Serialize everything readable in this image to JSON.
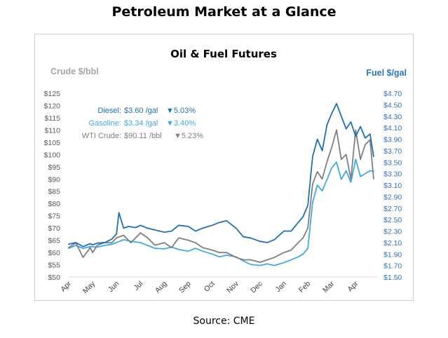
{
  "page": {
    "title": "Petroleum Market at a Glance",
    "source": "Source: CME"
  },
  "colors": {
    "diesel": "#1f6fb4",
    "gasoline": "#3fa9e0",
    "crude": "#7f7f7f",
    "right_axis": "#2e75b6",
    "left_axis": "#a6a6a6"
  },
  "chart_data": {
    "type": "line",
    "title": "Oil & Fuel Futures",
    "ylabel_left": "Crude $/bbl",
    "ylabel_right": "Fuel $/gal",
    "ylim_left": [
      50,
      125
    ],
    "ylim_right": [
      1.5,
      4.7
    ],
    "y_ticks_left": [
      "$125",
      "$120",
      "$115",
      "$110",
      "$105",
      "$100",
      "$95",
      "$90",
      "$85",
      "$80",
      "$75",
      "$70",
      "$65",
      "$60",
      "$55",
      "$50"
    ],
    "y_ticks_right": [
      "$4.70",
      "$4.50",
      "$4.30",
      "$4.10",
      "$3.90",
      "$3.70",
      "$3.50",
      "$3.30",
      "$3.10",
      "$2.90",
      "$2.70",
      "$2.50",
      "$2.30",
      "$2.10",
      "$1.90",
      "$1.70",
      "$1.50"
    ],
    "x_ticks": [
      "Apr",
      "May",
      "Jun",
      "Jul",
      "Aug",
      "Sep",
      "Oct",
      "Nov",
      "Dec",
      "Jan",
      "Feb",
      "Mar",
      "Apr"
    ],
    "grid": false,
    "legend_labels": [
      {
        "name": "Diesel:",
        "value": "$3.60 /gal",
        "change": "▼5.03%"
      },
      {
        "name": "Gasoline:",
        "value": "$3.34 /gal",
        "change": "▼3.40%"
      },
      {
        "name": "WTI Crude:",
        "value": "$90.11 /bbl",
        "change": "▼5.23%"
      }
    ],
    "series": [
      {
        "name": "Diesel",
        "axis": "right",
        "x": [
          0.0,
          0.3,
          0.6,
          0.9,
          1.0,
          1.2,
          1.5,
          1.8,
          2.0,
          2.1,
          2.3,
          2.5,
          2.8,
          3.0,
          3.3,
          3.6,
          4.0,
          4.3,
          4.6,
          5.0,
          5.3,
          5.6,
          6.0,
          6.3,
          6.6,
          7.0,
          7.3,
          7.6,
          8.0,
          8.3,
          8.6,
          9.0,
          9.3,
          9.6,
          9.8,
          10.0,
          10.2,
          10.4,
          10.6,
          10.8,
          11.0,
          11.2,
          11.4,
          11.6,
          11.8,
          12.0,
          12.2,
          12.4,
          12.6,
          12.75
        ],
        "y": [
          2.07,
          2.1,
          2.03,
          2.08,
          2.06,
          2.09,
          2.1,
          2.16,
          2.25,
          2.62,
          2.35,
          2.38,
          2.36,
          2.4,
          2.35,
          2.32,
          2.28,
          2.3,
          2.4,
          2.38,
          2.3,
          2.35,
          2.4,
          2.45,
          2.48,
          2.35,
          2.2,
          2.18,
          2.12,
          2.1,
          2.15,
          2.3,
          2.3,
          2.45,
          2.55,
          2.75,
          3.6,
          3.9,
          3.7,
          4.15,
          4.35,
          4.52,
          4.3,
          4.08,
          4.2,
          3.95,
          4.12,
          3.92,
          3.99,
          3.6
        ]
      },
      {
        "name": "Gasoline",
        "axis": "right",
        "x": [
          0.0,
          0.3,
          0.6,
          0.9,
          1.2,
          1.5,
          1.8,
          2.0,
          2.3,
          2.6,
          3.0,
          3.3,
          3.6,
          4.0,
          4.3,
          4.6,
          5.0,
          5.3,
          5.6,
          6.0,
          6.3,
          6.6,
          7.0,
          7.3,
          7.6,
          8.0,
          8.3,
          8.6,
          9.0,
          9.3,
          9.6,
          9.8,
          10.0,
          10.2,
          10.4,
          10.6,
          10.8,
          11.0,
          11.2,
          11.4,
          11.6,
          11.8,
          12.0,
          12.2,
          12.4,
          12.6,
          12.75
        ],
        "y": [
          2.0,
          2.05,
          2.0,
          2.03,
          2.02,
          2.05,
          2.07,
          2.1,
          2.15,
          2.12,
          2.1,
          2.05,
          2.0,
          1.99,
          2.02,
          1.98,
          1.95,
          2.0,
          1.95,
          1.9,
          1.85,
          1.88,
          1.85,
          1.78,
          1.72,
          1.7,
          1.73,
          1.7,
          1.75,
          1.8,
          1.85,
          1.9,
          2.0,
          2.8,
          3.1,
          3.0,
          3.2,
          3.4,
          3.5,
          3.2,
          3.35,
          3.15,
          3.55,
          3.25,
          3.3,
          3.35,
          3.34
        ]
      },
      {
        "name": "WTI Crude",
        "axis": "left",
        "x": [
          0.0,
          0.3,
          0.6,
          0.9,
          1.0,
          1.2,
          1.5,
          1.8,
          2.0,
          2.3,
          2.6,
          3.0,
          3.3,
          3.6,
          4.0,
          4.3,
          4.6,
          5.0,
          5.3,
          5.6,
          6.0,
          6.3,
          6.6,
          7.0,
          7.3,
          7.6,
          8.0,
          8.3,
          8.6,
          9.0,
          9.3,
          9.6,
          9.8,
          10.0,
          10.2,
          10.4,
          10.6,
          10.8,
          11.0,
          11.2,
          11.4,
          11.6,
          11.8,
          12.0,
          12.2,
          12.4,
          12.6,
          12.75
        ],
        "y": [
          62,
          64,
          58,
          62,
          60,
          63,
          64,
          64,
          66,
          67,
          64,
          68,
          66,
          63,
          64,
          62,
          66,
          65,
          64,
          62,
          61,
          60,
          60,
          58,
          57,
          57,
          56,
          57,
          58,
          60,
          61,
          64,
          66,
          70,
          88,
          93,
          90,
          97,
          103,
          110,
          98,
          100,
          90,
          110,
          98,
          104,
          106,
          90.11
        ]
      }
    ]
  }
}
